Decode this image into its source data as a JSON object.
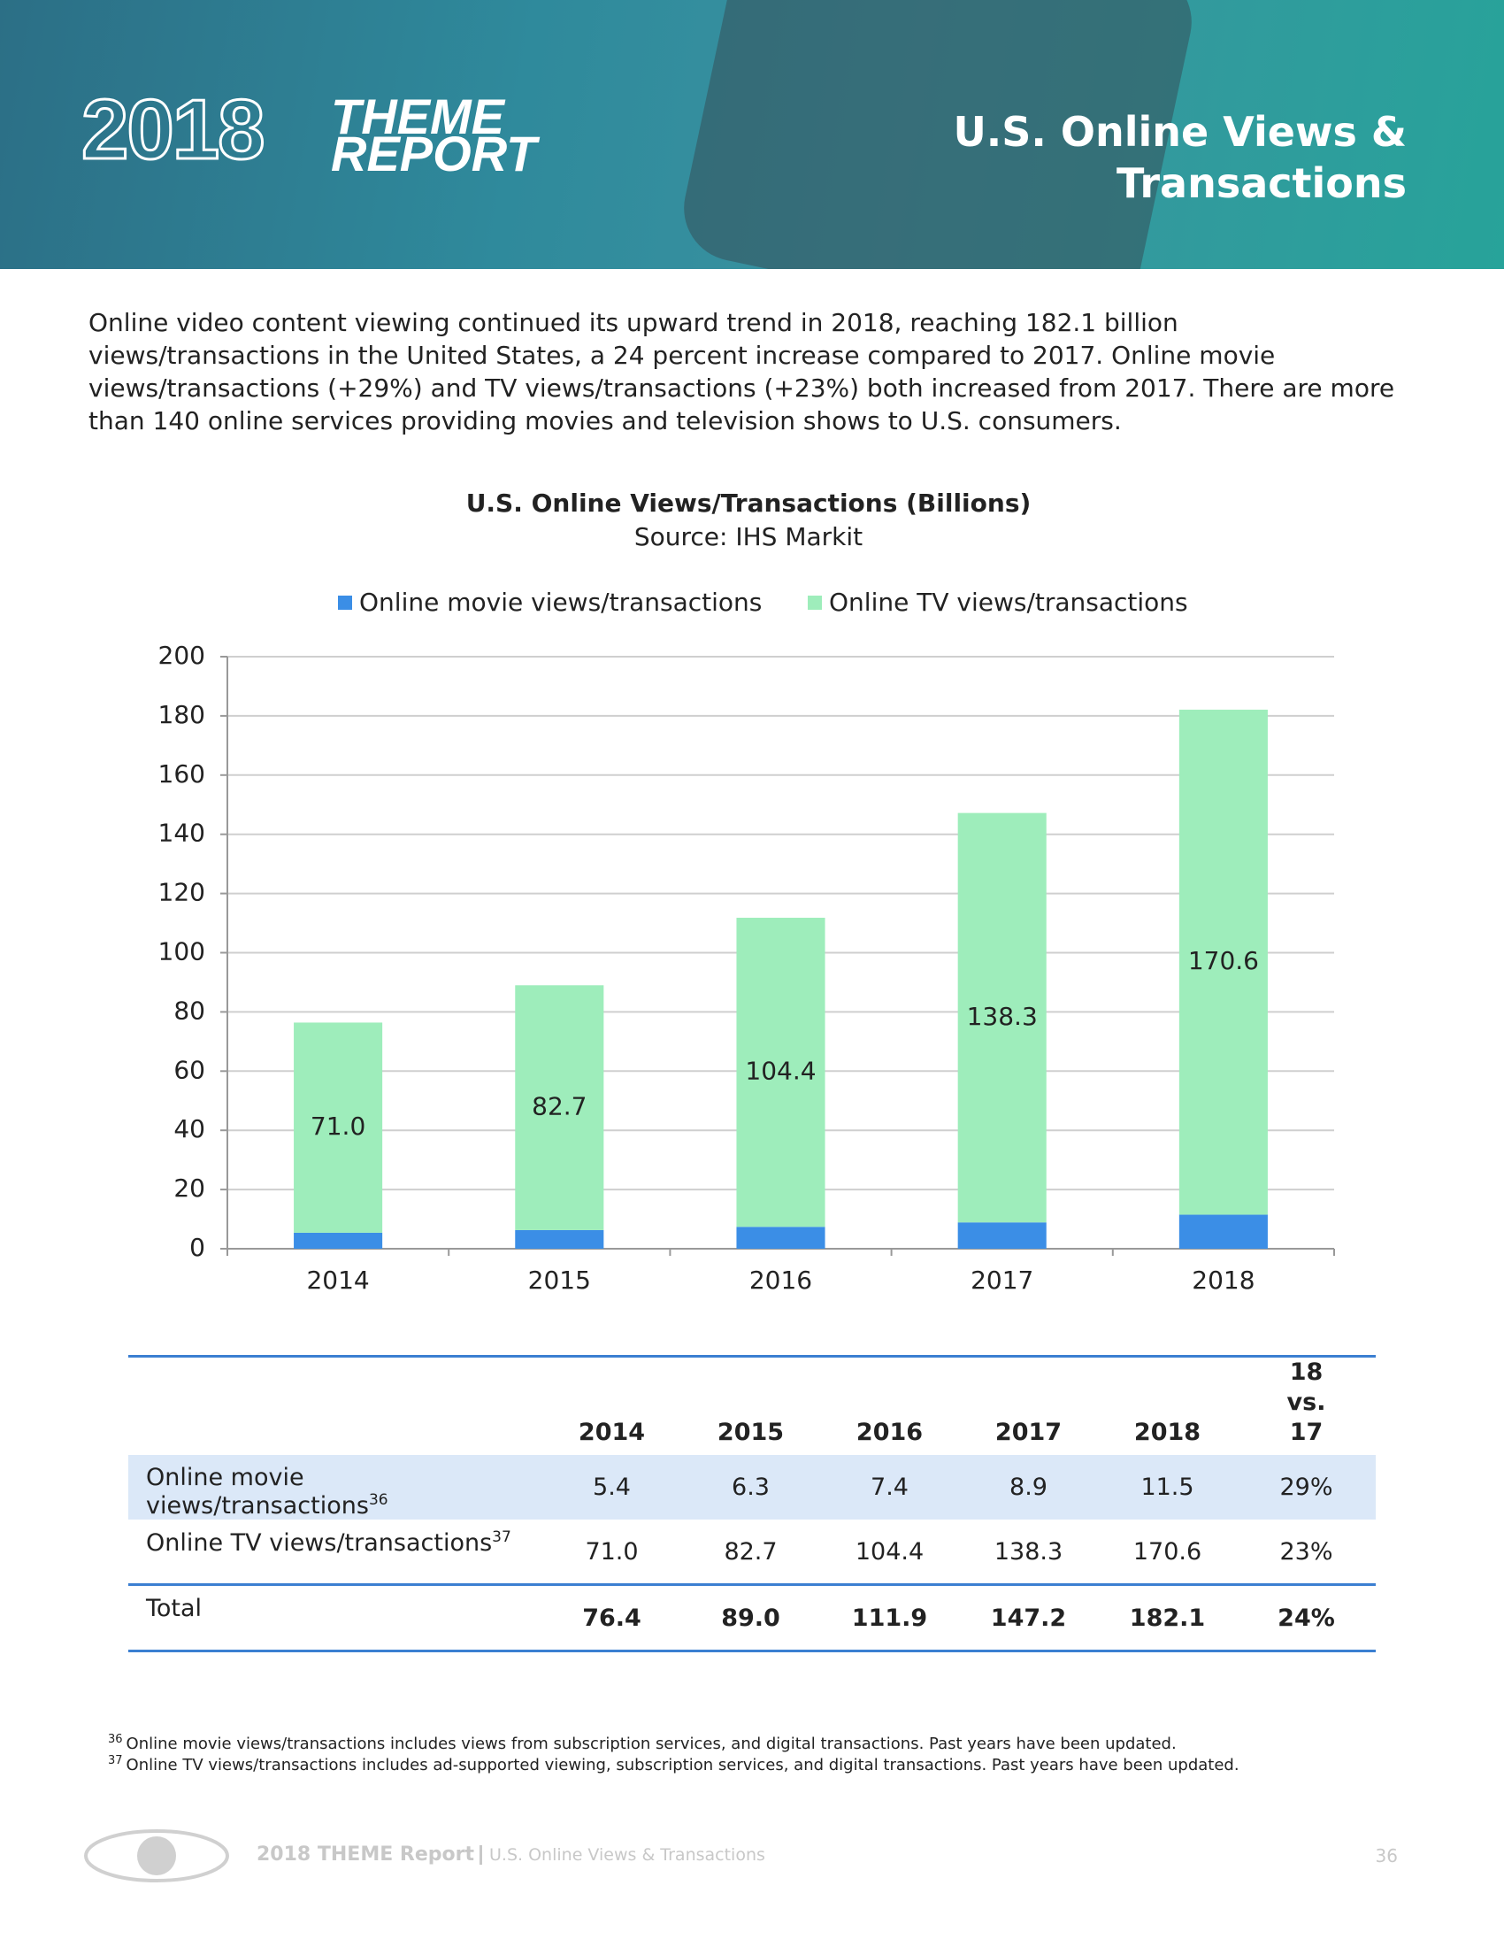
{
  "header": {
    "logo_year": "2018",
    "logo_line1": "THEME",
    "logo_line2": "REPORT",
    "title": "U.S. Online Views & Transactions"
  },
  "intro": "Online video content viewing continued its upward trend in 2018, reaching 182.1 billion views/transactions in the United States, a 24 percent increase compared to 2017. Online movie views/transactions (+29%) and TV views/transactions (+23%) both increased from 2017. There are more than 140 online services providing movies and television shows to U.S. consumers.",
  "chart_data": {
    "type": "stacked_bar",
    "title": "U.S. Online Views/Transactions (Billions)",
    "subtitle": "Source: IHS Markit",
    "categories": [
      "2014",
      "2015",
      "2016",
      "2017",
      "2018"
    ],
    "series": [
      {
        "name": "Online movie views/transactions",
        "color": "#3b8ee6",
        "values": [
          5.4,
          6.3,
          7.4,
          8.9,
          11.5
        ]
      },
      {
        "name": "Online TV views/transactions",
        "color": "#9eedbb",
        "values": [
          71.0,
          82.7,
          104.4,
          138.3,
          170.6
        ],
        "value_labels": [
          "71.0",
          "82.7",
          "104.4",
          "138.3",
          "170.6"
        ]
      }
    ],
    "ylim": [
      0,
      200
    ],
    "yticks": [
      0,
      20,
      40,
      60,
      80,
      100,
      120,
      140,
      160,
      180,
      200
    ],
    "grid": true,
    "legend": "top"
  },
  "table": {
    "columns": [
      "2014",
      "2015",
      "2016",
      "2017",
      "2018",
      "18 vs. 17"
    ],
    "rows": [
      {
        "label": "Online movie views/transactions",
        "note": "36",
        "cells": [
          "5.4",
          "6.3",
          "7.4",
          "8.9",
          "11.5",
          "29%"
        ]
      },
      {
        "label": "Online TV views/transactions",
        "note": "37",
        "cells": [
          "71.0",
          "82.7",
          "104.4",
          "138.3",
          "170.6",
          "23%"
        ]
      },
      {
        "label": "Total",
        "cells": [
          "76.4",
          "89.0",
          "111.9",
          "147.2",
          "182.1",
          "24%"
        ]
      }
    ]
  },
  "footnotes": [
    {
      "number": "36",
      "text": "Online movie views/transactions includes views from subscription services, and digital transactions. Past years have been updated."
    },
    {
      "number": "37",
      "text": "Online TV views/transactions includes ad-supported viewing, subscription services, and digital transactions. Past years have been updated."
    }
  ],
  "footer": {
    "brand": "2018 THEME Report",
    "section": "U.S. Online Views & Transactions",
    "page": "36"
  }
}
